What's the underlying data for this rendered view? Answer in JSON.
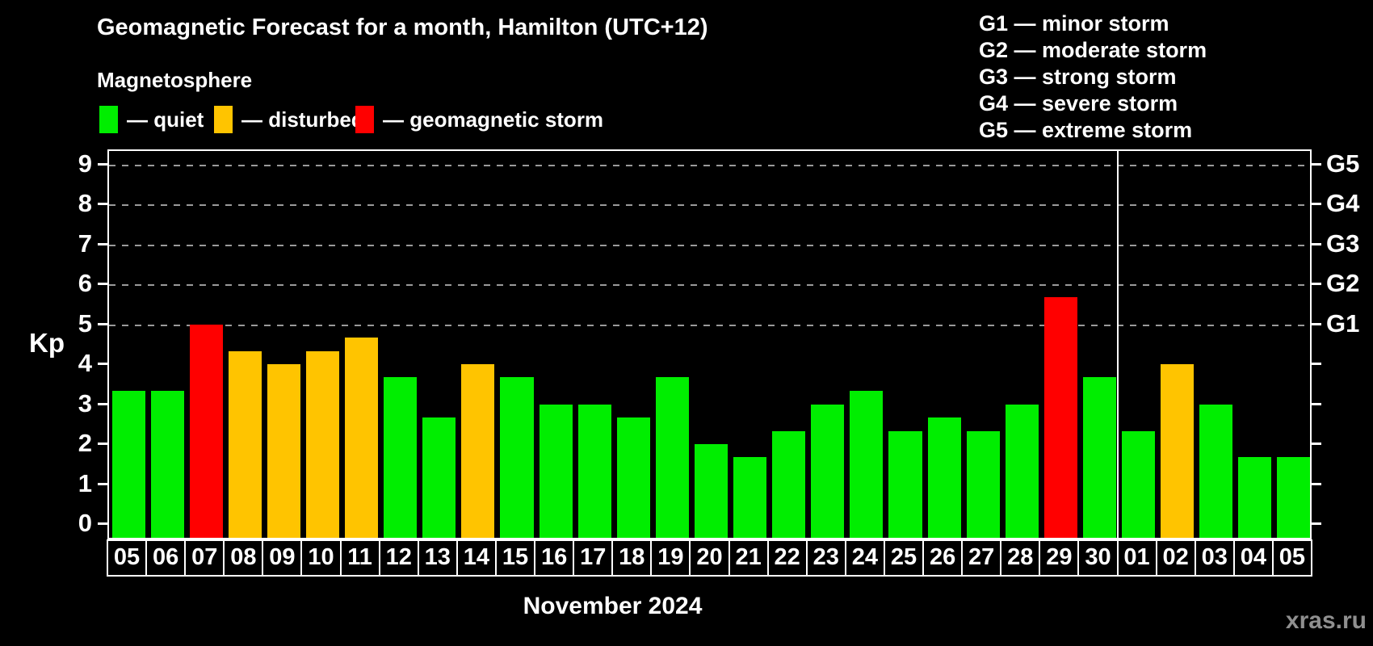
{
  "header": {
    "title": "Geomagnetic Forecast for a month, Hamilton (UTC+12)",
    "subtitle": "Magnetosphere"
  },
  "kp_legend": {
    "items": [
      {
        "name": "quiet",
        "label": "— quiet",
        "color": "#00ee00"
      },
      {
        "name": "disturbed",
        "label": "— disturbed",
        "color": "#ffc400"
      },
      {
        "name": "storm",
        "label": "— geomagnetic storm",
        "color": "#ff0000"
      }
    ]
  },
  "g_legend": {
    "items": [
      "G1 — minor storm",
      "G2 — moderate storm",
      "G3 — strong storm",
      "G4 — severe storm",
      "G5 — extreme storm"
    ]
  },
  "watermark": "xras.ru",
  "chart_data": {
    "type": "bar",
    "title": "Geomagnetic Forecast for a month, Hamilton (UTC+12)",
    "ylabel": "Kp",
    "xlabel_caption": "November 2024",
    "ylim": [
      0,
      9
    ],
    "yticks": [
      0,
      1,
      2,
      3,
      4,
      5,
      6,
      7,
      8,
      9
    ],
    "gridlines_at": [
      5,
      6,
      7,
      8,
      9
    ],
    "right_axis": [
      {
        "kp": 5,
        "label": "G1"
      },
      {
        "kp": 6,
        "label": "G2"
      },
      {
        "kp": 7,
        "label": "G3"
      },
      {
        "kp": 8,
        "label": "G4"
      },
      {
        "kp": 9,
        "label": "G5"
      }
    ],
    "thresholds": {
      "disturbed": 4,
      "storm": 5
    },
    "colors": {
      "quiet": "#00ee00",
      "disturbed": "#ffc400",
      "storm": "#ff0000"
    },
    "month_separator_after_index": 25,
    "categories": [
      "05",
      "06",
      "07",
      "08",
      "09",
      "10",
      "11",
      "12",
      "13",
      "14",
      "15",
      "16",
      "17",
      "18",
      "19",
      "20",
      "21",
      "22",
      "23",
      "24",
      "25",
      "26",
      "27",
      "28",
      "29",
      "30",
      "01",
      "02",
      "03",
      "04",
      "05"
    ],
    "values": [
      3.33,
      3.33,
      5.0,
      4.33,
      4.0,
      4.33,
      4.67,
      3.67,
      2.67,
      4.0,
      3.67,
      3.0,
      3.0,
      2.67,
      3.67,
      2.0,
      1.67,
      2.33,
      3.0,
      3.33,
      2.33,
      2.67,
      2.33,
      3.0,
      5.67,
      3.67,
      2.33,
      4.0,
      3.0,
      1.67,
      1.67
    ]
  }
}
